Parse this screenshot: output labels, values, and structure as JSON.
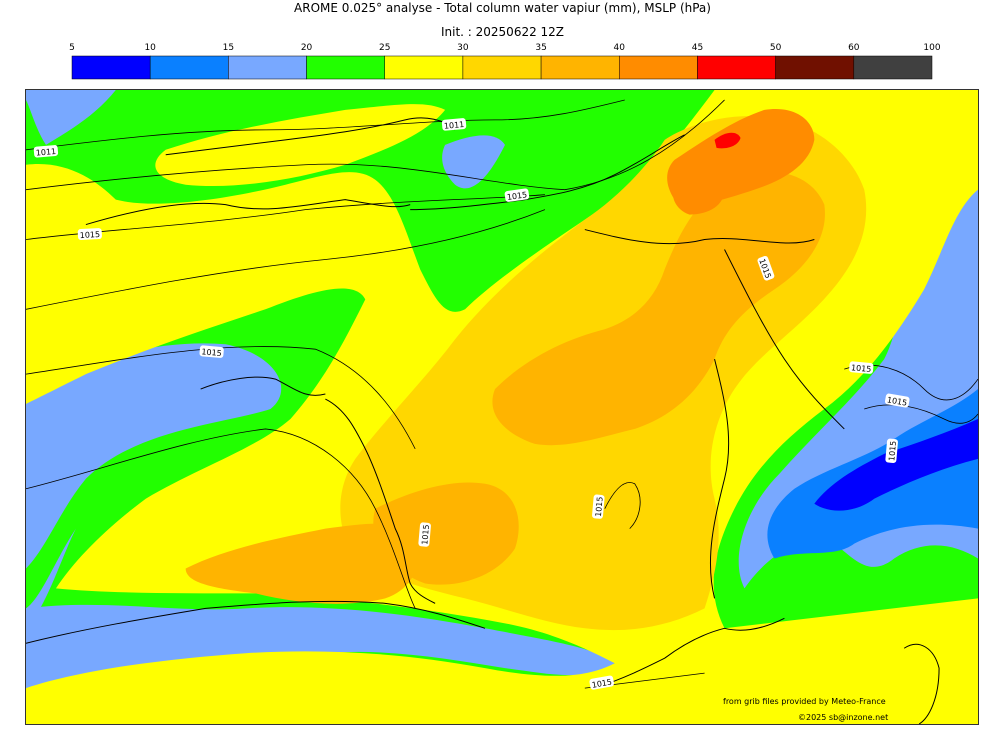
{
  "header": {
    "title": "AROME 0.025° analyse - Total column water vapiur (mm), MSLP (hPa)",
    "init": "Init. : 20250622 12Z"
  },
  "colorbar": {
    "ticks": [
      "5",
      "10",
      "15",
      "20",
      "25",
      "30",
      "35",
      "40",
      "45",
      "50",
      "60",
      "100"
    ],
    "colors": [
      "#0000ff",
      "#0a80ff",
      "#78a8ff",
      "#22ff00",
      "#ffff00",
      "#ffd700",
      "#ffb400",
      "#ff8c00",
      "#ff0000",
      "#701000",
      "#404040"
    ]
  },
  "map": {
    "palette": {
      "water_10_15": "#0a80ff",
      "water_15_20": "#78a8ff",
      "water_20_25": "#22ff00",
      "water_25_30": "#ffff00",
      "water_30_35": "#ffd700",
      "water_35_40": "#ffb400",
      "water_40_45": "#ff8c00",
      "water_45_50": "#ff0000",
      "water_5_10": "#0000ff",
      "coastline": "#000000",
      "isobar": "#000000"
    },
    "isobar_labels": [
      "1011",
      "1011",
      "1015",
      "1015",
      "1015",
      "1015",
      "1015",
      "1015",
      "1015",
      "1015",
      "1015",
      "1015"
    ]
  },
  "credits": {
    "source": "from grib files provided by Meteo-France",
    "copyright": "©2025 sb@inzone.net"
  }
}
